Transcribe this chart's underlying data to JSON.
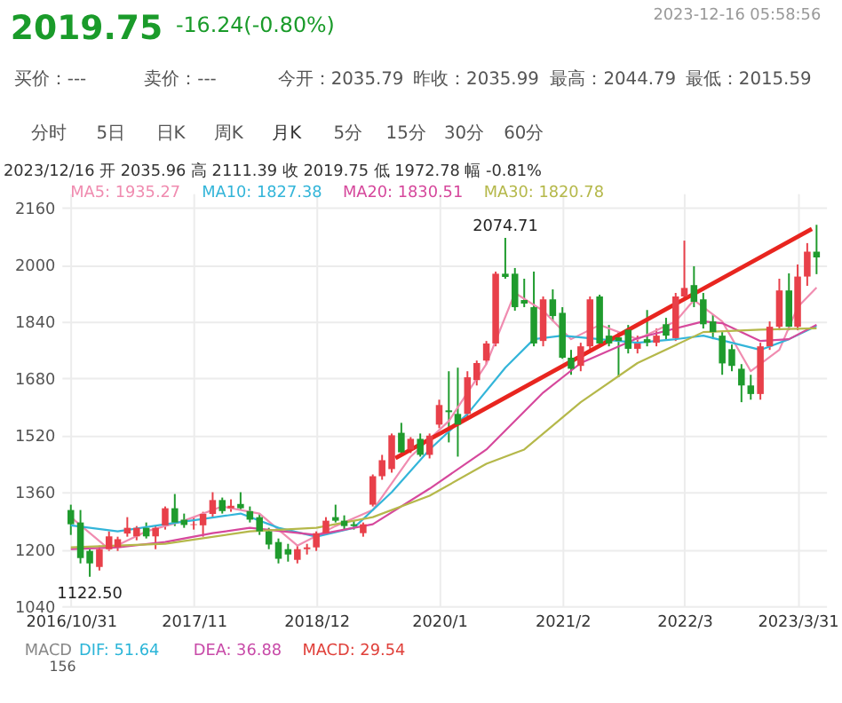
{
  "chart_data": {
    "type": "candlestick",
    "title": "2019.75",
    "subtitle": "-16.24(-0.80%)",
    "x": [
      "2016-10",
      "2016-11",
      "2016-12",
      "2017-01",
      "2017-02",
      "2017-03",
      "2017-04",
      "2017-05",
      "2017-06",
      "2017-07",
      "2017-08",
      "2017-09",
      "2017-10",
      "2017-11",
      "2017-12",
      "2018-01",
      "2018-02",
      "2018-03",
      "2018-04",
      "2018-05",
      "2018-06",
      "2018-07",
      "2018-08",
      "2018-09",
      "2018-10",
      "2018-11",
      "2018-12",
      "2019-01",
      "2019-02",
      "2019-03",
      "2019-04",
      "2019-05",
      "2019-06",
      "2019-07",
      "2019-08",
      "2019-09",
      "2019-10",
      "2019-11",
      "2019-12",
      "2020-01",
      "2020-02",
      "2020-03",
      "2020-04",
      "2020-05",
      "2020-06",
      "2020-07",
      "2020-08",
      "2020-09",
      "2020-10",
      "2020-11",
      "2020-12",
      "2021-01",
      "2021-02",
      "2021-03",
      "2021-04",
      "2021-05",
      "2021-06",
      "2021-07",
      "2021-08",
      "2021-09",
      "2021-10",
      "2021-11",
      "2021-12",
      "2022-01",
      "2022-02",
      "2022-03",
      "2022-04",
      "2022-05",
      "2022-06",
      "2022-07",
      "2022-08",
      "2022-09",
      "2022-10",
      "2022-11",
      "2022-12",
      "2023-01",
      "2023-02",
      "2023-03",
      "2023-04",
      "2023-05"
    ],
    "ohlc": [
      [
        1310,
        1325,
        1240,
        1270
      ],
      [
        1275,
        1310,
        1160,
        1175
      ],
      [
        1195,
        1200,
        1122.5,
        1160
      ],
      [
        1150,
        1210,
        1140,
        1200
      ],
      [
        1200,
        1250,
        1195,
        1236
      ],
      [
        1205,
        1235,
        1195,
        1228
      ],
      [
        1244,
        1290,
        1235,
        1260
      ],
      [
        1236,
        1265,
        1225,
        1260
      ],
      [
        1260,
        1275,
        1230,
        1236
      ],
      [
        1236,
        1265,
        1200,
        1260
      ],
      [
        1267,
        1320,
        1255,
        1315
      ],
      [
        1315,
        1355,
        1265,
        1275
      ],
      [
        1283,
        1300,
        1260,
        1268
      ],
      [
        1268,
        1290,
        1255,
        1270
      ],
      [
        1267,
        1305,
        1235,
        1299
      ],
      [
        1299,
        1360,
        1290,
        1338
      ],
      [
        1338,
        1345,
        1300,
        1307
      ],
      [
        1315,
        1340,
        1305,
        1322
      ],
      [
        1327,
        1360,
        1310,
        1315
      ],
      [
        1307,
        1320,
        1275,
        1283
      ],
      [
        1290,
        1300,
        1240,
        1250
      ],
      [
        1250,
        1260,
        1200,
        1213
      ],
      [
        1220,
        1230,
        1160,
        1173
      ],
      [
        1200,
        1215,
        1165,
        1185
      ],
      [
        1170,
        1210,
        1160,
        1200
      ],
      [
        1200,
        1215,
        1185,
        1205
      ],
      [
        1205,
        1250,
        1195,
        1245
      ],
      [
        1245,
        1290,
        1240,
        1280
      ],
      [
        1290,
        1325,
        1275,
        1280
      ],
      [
        1280,
        1295,
        1255,
        1265
      ],
      [
        1270,
        1280,
        1255,
        1265
      ],
      [
        1245,
        1275,
        1235,
        1270
      ],
      [
        1325,
        1410,
        1320,
        1405
      ],
      [
        1405,
        1465,
        1395,
        1450
      ],
      [
        1425,
        1525,
        1415,
        1520
      ],
      [
        1527,
        1555,
        1465,
        1472
      ],
      [
        1480,
        1515,
        1470,
        1510
      ],
      [
        1510,
        1525,
        1460,
        1465
      ],
      [
        1465,
        1525,
        1455,
        1519
      ],
      [
        1550,
        1620,
        1540,
        1605
      ],
      [
        1590,
        1700,
        1500,
        1585
      ],
      [
        1580,
        1710,
        1460,
        1550
      ],
      [
        1580,
        1700,
        1570,
        1683
      ],
      [
        1675,
        1730,
        1660,
        1723
      ],
      [
        1730,
        1785,
        1720,
        1778
      ],
      [
        1778,
        1980,
        1770,
        1974
      ],
      [
        1974,
        2074.71,
        1960,
        1965
      ],
      [
        1974,
        1990,
        1870,
        1880
      ],
      [
        1900,
        1960,
        1880,
        1890
      ],
      [
        1880,
        1980,
        1770,
        1778
      ],
      [
        1785,
        1910,
        1770,
        1902
      ],
      [
        1902,
        1930,
        1840,
        1855
      ],
      [
        1864,
        1880,
        1735,
        1738
      ],
      [
        1738,
        1760,
        1690,
        1707
      ],
      [
        1715,
        1780,
        1700,
        1770
      ],
      [
        1770,
        1910,
        1760,
        1902
      ],
      [
        1910,
        1915,
        1770,
        1778
      ],
      [
        1800,
        1830,
        1770,
        1778
      ],
      [
        1795,
        1810,
        1683,
        1785
      ],
      [
        1817,
        1830,
        1750,
        1763
      ],
      [
        1763,
        1800,
        1750,
        1778
      ],
      [
        1790,
        1872,
        1770,
        1780
      ],
      [
        1780,
        1820,
        1770,
        1800
      ],
      [
        1832,
        1850,
        1790,
        1800
      ],
      [
        1793,
        1920,
        1785,
        1910
      ],
      [
        1910,
        2067,
        1900,
        1934
      ],
      [
        1942,
        1995,
        1880,
        1895
      ],
      [
        1902,
        1920,
        1820,
        1832
      ],
      [
        1840,
        1860,
        1790,
        1810
      ],
      [
        1800,
        1810,
        1690,
        1722
      ],
      [
        1762,
        1775,
        1700,
        1715
      ],
      [
        1707,
        1720,
        1613,
        1660
      ],
      [
        1660,
        1690,
        1620,
        1636
      ],
      [
        1636,
        1780,
        1620,
        1770
      ],
      [
        1770,
        1840,
        1760,
        1825
      ],
      [
        1825,
        1960,
        1815,
        1927
      ],
      [
        1927,
        1975,
        1815,
        1825
      ],
      [
        1825,
        2000,
        1815,
        1966
      ],
      [
        1966,
        2060,
        1940,
        2036
      ],
      [
        2035.96,
        2111.39,
        1972.78,
        2019.75
      ]
    ],
    "colors": [
      "#1f9b2d",
      "#1f9b2d",
      "#1f9b2d",
      "#e8404a",
      "#e8404a",
      "#e8404a",
      "#e8404a",
      "#e8404a",
      "#1f9b2d",
      "#e8404a",
      "#e8404a",
      "#1f9b2d",
      "#1f9b2d",
      "#e8404a",
      "#e8404a",
      "#e8404a",
      "#1f9b2d",
      "#e8404a",
      "#1f9b2d",
      "#1f9b2d",
      "#1f9b2d",
      "#1f9b2d",
      "#1f9b2d",
      "#1f9b2d",
      "#e8404a",
      "#e8404a",
      "#e8404a",
      "#e8404a",
      "#1f9b2d",
      "#1f9b2d",
      "#1f9b2d",
      "#e8404a",
      "#e8404a",
      "#e8404a",
      "#e8404a",
      "#1f9b2d",
      "#e8404a",
      "#1f9b2d",
      "#e8404a",
      "#e8404a",
      "#1f9b2d",
      "#1f9b2d",
      "#e8404a",
      "#e8404a",
      "#e8404a",
      "#e8404a",
      "#1f9b2d",
      "#1f9b2d",
      "#1f9b2d",
      "#1f9b2d",
      "#e8404a",
      "#1f9b2d",
      "#1f9b2d",
      "#1f9b2d",
      "#e8404a",
      "#e8404a",
      "#1f9b2d",
      "#1f9b2d",
      "#1f9b2d",
      "#1f9b2d",
      "#e8404a",
      "#1f9b2d",
      "#e8404a",
      "#1f9b2d",
      "#e8404a",
      "#e8404a",
      "#1f9b2d",
      "#1f9b2d",
      "#1f9b2d",
      "#1f9b2d",
      "#1f9b2d",
      "#1f9b2d",
      "#1f9b2d",
      "#e8404a",
      "#e8404a",
      "#e8404a",
      "#1f9b2d",
      "#e8404a",
      "#e8404a",
      "#1f9b2d"
    ],
    "series": [
      {
        "type": "line",
        "name": "MA5: 1935.27",
        "color": "#f08cb0",
        "x": [
          "2016-10",
          "2017-02",
          "2017-06",
          "2017-10",
          "2018-02",
          "2018-06",
          "2018-10",
          "2019-02",
          "2019-06",
          "2019-10",
          "2020-02",
          "2020-06",
          "2020-09",
          "2020-12",
          "2021-03",
          "2021-06",
          "2021-10",
          "2022-02",
          "2022-04",
          "2022-07",
          "2022-10",
          "2023-01",
          "2023-03",
          "2023-05"
        ],
        "values": [
          1290,
          1200,
          1250,
          1280,
          1320,
          1300,
          1210,
          1265,
          1310,
          1460,
          1560,
          1720,
          1920,
          1870,
          1790,
          1830,
          1790,
          1840,
          1900,
          1840,
          1700,
          1760,
          1880,
          1935.27
        ]
      },
      {
        "type": "line",
        "name": "MA10: 1827.38",
        "color": "#33b5d9",
        "x": [
          "2016-10",
          "2017-03",
          "2017-08",
          "2017-12",
          "2018-04",
          "2018-08",
          "2018-12",
          "2019-04",
          "2019-08",
          "2019-12",
          "2020-04",
          "2020-08",
          "2020-11",
          "2021-02",
          "2021-06",
          "2021-10",
          "2022-02",
          "2022-05",
          "2022-08",
          "2022-11",
          "2023-02",
          "2023-05"
        ],
        "values": [
          1267,
          1250,
          1270,
          1285,
          1300,
          1260,
          1235,
          1260,
          1360,
          1480,
          1580,
          1710,
          1790,
          1800,
          1790,
          1780,
          1790,
          1800,
          1780,
          1760,
          1790,
          1827.38
        ]
      },
      {
        "type": "line",
        "name": "MA20: 1830.51",
        "color": "#d6489c",
        "x": [
          "2016-10",
          "2017-03",
          "2017-08",
          "2018-01",
          "2018-05",
          "2018-12",
          "2019-06",
          "2019-12",
          "2020-06",
          "2020-12",
          "2021-04",
          "2021-10",
          "2022-05",
          "2022-07",
          "2022-11",
          "2023-02",
          "2023-05"
        ],
        "values": [
          1200,
          1205,
          1220,
          1245,
          1260,
          1240,
          1270,
          1370,
          1480,
          1640,
          1723,
          1793,
          1840,
          1835,
          1785,
          1790,
          1830.51
        ]
      },
      {
        "type": "line",
        "name": "MA30: 1820.78",
        "color": "#b5b84a",
        "x": [
          "2016-10",
          "2017-08",
          "2018-05",
          "2018-12",
          "2019-06",
          "2019-12",
          "2020-06",
          "2020-10",
          "2021-04",
          "2021-10",
          "2022-05",
          "2022-11",
          "2023-05"
        ],
        "values": [
          1205,
          1215,
          1250,
          1260,
          1290,
          1350,
          1440,
          1480,
          1613,
          1723,
          1810,
          1817,
          1820.78
        ]
      },
      {
        "type": "line",
        "color": "#e8251f",
        "x": [
          "2019-08-13",
          "2023-04-16"
        ],
        "values": [
          1456,
          2100
        ]
      }
    ],
    "xlim": [
      "2016-09",
      "2023-06"
    ],
    "ylim": [
      1040,
      2200
    ],
    "xticks": [
      {
        "value": "2016-10",
        "label": "2016/10/31"
      },
      {
        "value": "2017-11",
        "label": "2017/11"
      },
      {
        "value": "2018-12",
        "label": "2018/12"
      },
      {
        "value": "2020-01",
        "label": "2020/1"
      },
      {
        "value": "2021-02",
        "label": "2021/2"
      },
      {
        "value": "2022-03",
        "label": "2022/3"
      },
      {
        "value": "2023-03",
        "label": "2023/3/31"
      }
    ],
    "yticks": [
      1040,
      1200,
      1360,
      1520,
      1680,
      1840,
      2000,
      2160
    ],
    "grid": true,
    "legend": "top left",
    "annotations": [
      "2023-12-16 05:58:56",
      "买价：---",
      "卖价：---",
      "今开：2035.79",
      "昨收：2035.99",
      "最高：2044.79",
      "最低：2015.59",
      "分时",
      "5日",
      "日K",
      "周K",
      "月K",
      "5分",
      "15分",
      "30分",
      "60分",
      "2023/12/16 开 2035.96 高 2111.39 收 2019.75 低 1972.78 幅 -0.81%",
      "MACD",
      "DIF: 51.64",
      "DEA: 36.88",
      "MACD: 29.54",
      "156",
      {
        "text": "2074.71",
        "x": "2020-08",
        "y": 2074.71
      },
      {
        "text": "1122.50",
        "x": "2016-12",
        "y": 1122.5
      }
    ]
  }
}
